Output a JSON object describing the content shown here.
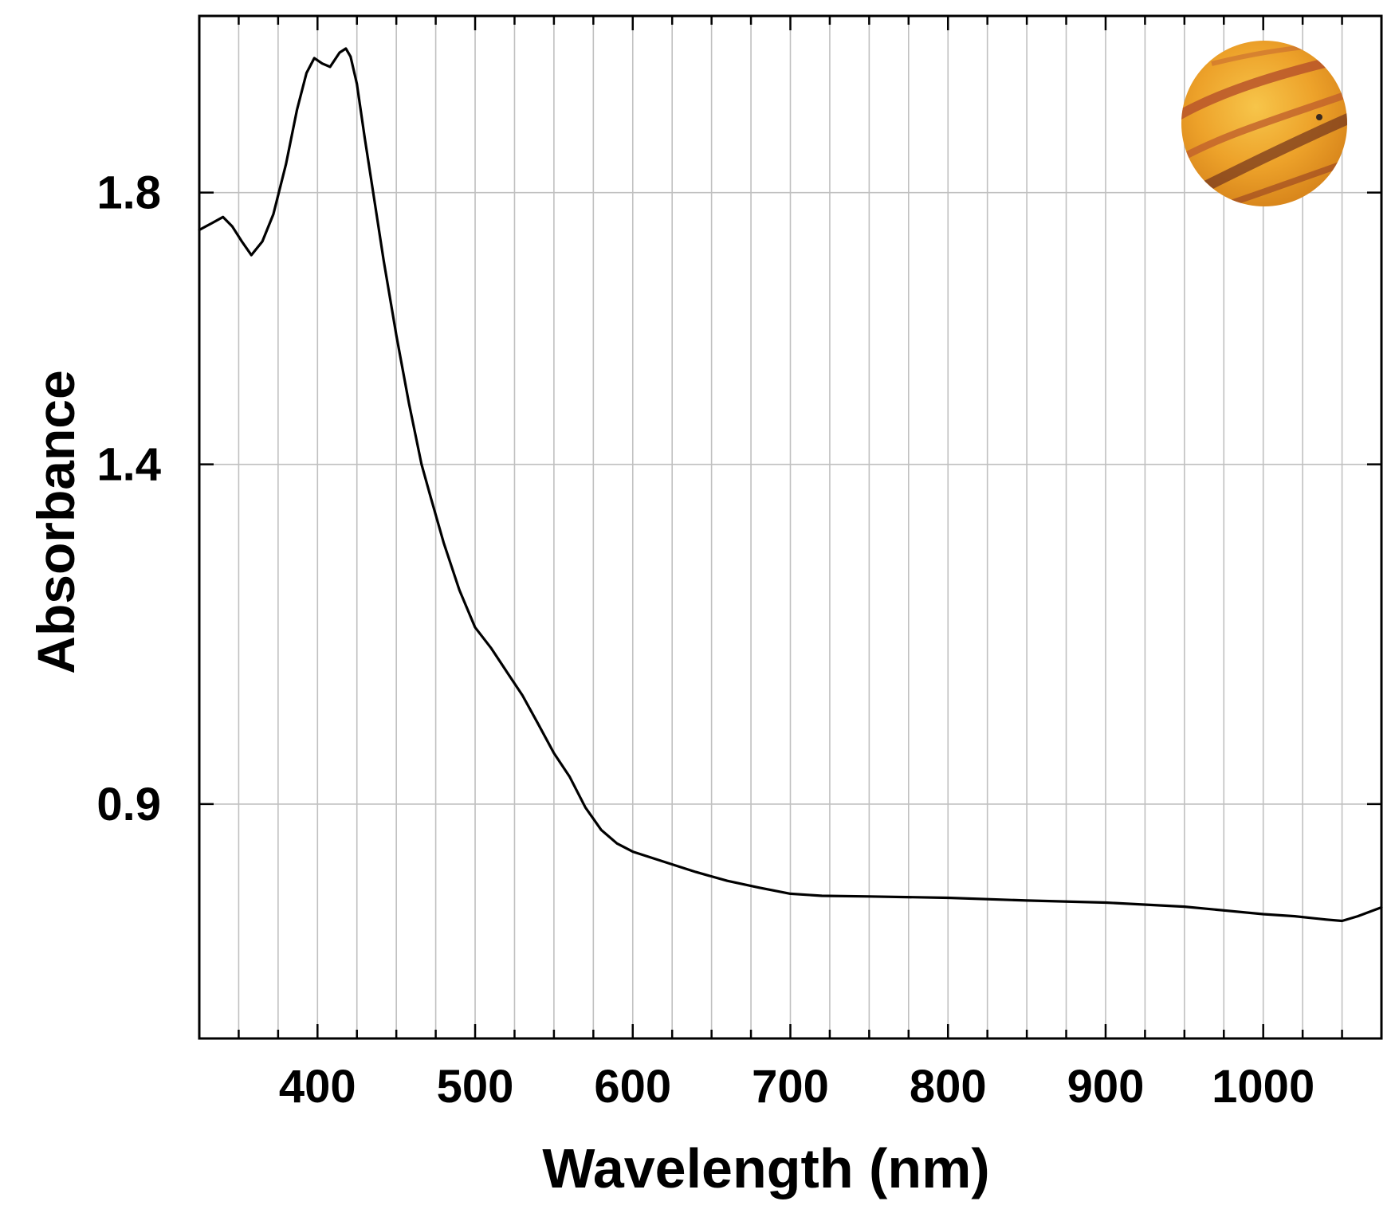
{
  "chart_data": {
    "type": "line",
    "title": "",
    "xlabel": "Wavelength (nm)",
    "ylabel": "Absorbance",
    "xlim": [
      325,
      1075
    ],
    "ylim": [
      0.555,
      2.06
    ],
    "xticks": [
      400,
      500,
      600,
      700,
      800,
      900,
      1000
    ],
    "x_tick_labels": [
      "400",
      "500",
      "600",
      "700",
      "800",
      "900",
      "1000"
    ],
    "yticks": [
      0.9,
      1.4,
      1.8
    ],
    "y_tick_labels": [
      "0.9",
      "1.4",
      "1.8"
    ],
    "grid": true,
    "x_minor_grid_step": 25,
    "line_color": "#000000",
    "grid_color": "#c0c0c0",
    "inset_image": "orange sample disc with brown streaks (top-right)",
    "series": [
      {
        "name": "Absorbance",
        "x": [
          325,
          333,
          340,
          346,
          352,
          358,
          365,
          372,
          380,
          387,
          393,
          398,
          403,
          408,
          414,
          418,
          421,
          425,
          430,
          436,
          442,
          450,
          458,
          466,
          472,
          480,
          490,
          500,
          510,
          520,
          530,
          540,
          550,
          560,
          570,
          580,
          590,
          600,
          620,
          640,
          660,
          680,
          700,
          720,
          750,
          800,
          850,
          900,
          950,
          1000,
          1020,
          1040,
          1050,
          1060,
          1075
        ],
        "y": [
          1.745,
          1.755,
          1.764,
          1.75,
          1.728,
          1.708,
          1.728,
          1.768,
          1.842,
          1.922,
          1.976,
          1.998,
          1.99,
          1.985,
          2.006,
          2.012,
          2.0,
          1.96,
          1.88,
          1.79,
          1.7,
          1.59,
          1.49,
          1.4,
          1.35,
          1.285,
          1.215,
          1.16,
          1.13,
          1.095,
          1.06,
          1.018,
          0.975,
          0.94,
          0.895,
          0.862,
          0.842,
          0.83,
          0.815,
          0.8,
          0.787,
          0.777,
          0.768,
          0.765,
          0.764,
          0.762,
          0.758,
          0.755,
          0.749,
          0.738,
          0.735,
          0.73,
          0.728,
          0.735,
          0.748
        ]
      }
    ]
  }
}
